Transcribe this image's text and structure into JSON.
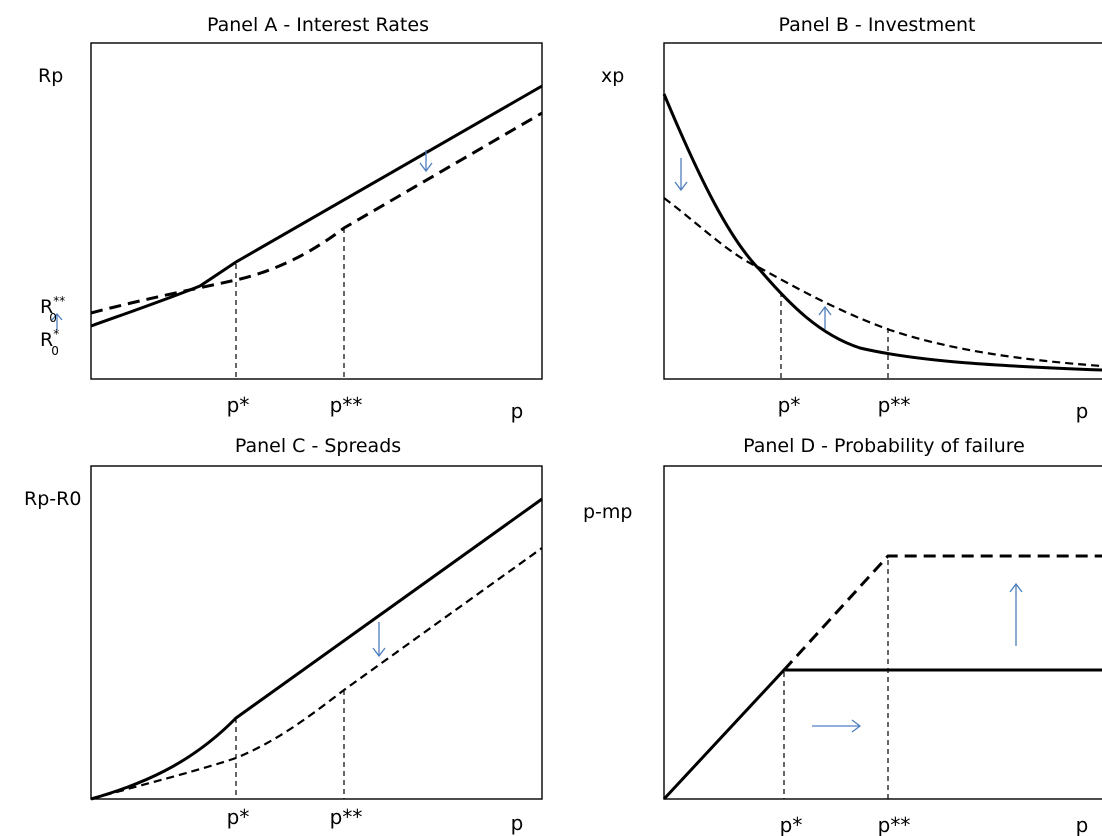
{
  "colors": {
    "line": "#000000",
    "arrow": "#4f7fc0"
  },
  "panels": {
    "a": {
      "title": "Panel A - Interest Rates",
      "ylabel": "Rp",
      "xlabel": "p",
      "tick1": "p*",
      "tick2": "p**",
      "r0_base": "R",
      "r0_ss_sup": "**",
      "r0_ss_sub": "0",
      "r0_s_sup": "*",
      "r0_s_sub": "0"
    },
    "b": {
      "title": "Panel B - Investment",
      "ylabel": "xp",
      "xlabel": "p",
      "tick1": "p*",
      "tick2": "p**"
    },
    "c": {
      "title": "Panel C - Spreads",
      "ylabel": "Rp-R0",
      "xlabel": "p",
      "tick1": "p*",
      "tick2": "p**"
    },
    "d": {
      "title": "Panel D - Probability of failure",
      "ylabel": "p-mp",
      "xlabel": "p",
      "tick1": "p*",
      "tick2": "p**"
    }
  }
}
